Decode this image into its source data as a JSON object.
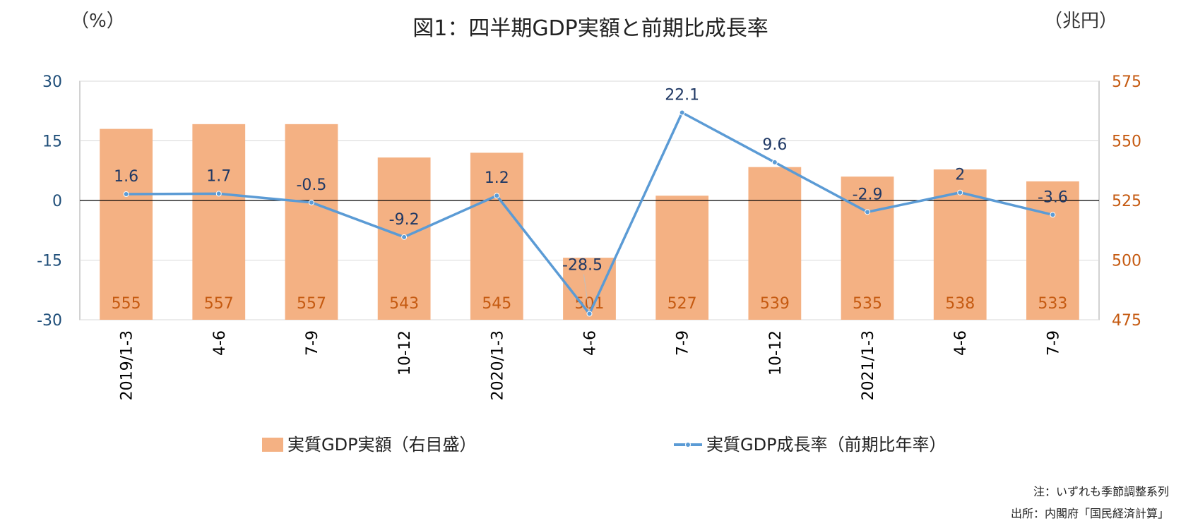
{
  "chart_data": {
    "type": "bar+line",
    "title": "図1：四半期GDP実額と前期比成長率",
    "left_unit": "（%）",
    "right_unit": "（兆円）",
    "categories": [
      "2019/1-3",
      "4-6",
      "7-9",
      "10-12",
      "2020/1-3",
      "4-6",
      "7-9",
      "10-12",
      "2021/1-3",
      "4-6",
      "7-9"
    ],
    "y_left": {
      "min": -30,
      "max": 30,
      "ticks": [
        "30",
        "15",
        "0",
        "-15",
        "-30"
      ]
    },
    "y_right": {
      "min": 475,
      "max": 575,
      "ticks": [
        "575",
        "550",
        "525",
        "500",
        "475"
      ]
    },
    "series": [
      {
        "name": "実質GDP実額（右目盛）",
        "type": "bar",
        "axis": "right",
        "values": [
          555,
          557,
          557,
          543,
          545,
          501,
          527,
          539,
          535,
          538,
          533
        ],
        "labels": [
          "555",
          "557",
          "557",
          "543",
          "545",
          "501",
          "527",
          "539",
          "535",
          "538",
          "533"
        ]
      },
      {
        "name": "実質GDP成長率（前期比年率）",
        "type": "line",
        "axis": "left",
        "values": [
          1.6,
          1.7,
          -0.5,
          -9.2,
          1.2,
          -28.5,
          22.1,
          9.6,
          -2.9,
          2,
          -3.6
        ],
        "labels": [
          "1.6",
          "1.7",
          "-0.5",
          "-9.2",
          "1.2",
          "-28.5",
          "22.1",
          "9.6",
          "-2.9",
          "2",
          "-3.6"
        ]
      }
    ],
    "colors": {
      "bar": "#f4b183",
      "line": "#5b9bd5",
      "left_axis": "#1f4e79",
      "right_axis": "#c55a11",
      "line_label": "#1f3864"
    },
    "legend_placement": "bottom",
    "grid": true,
    "notes": [
      "注：いずれも季節調整系列",
      "出所：内閣府「国民経済計算」"
    ]
  }
}
